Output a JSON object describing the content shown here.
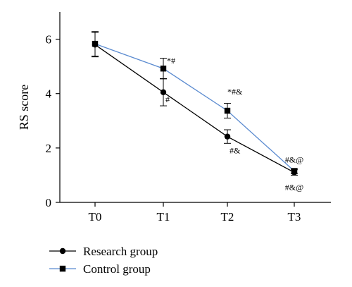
{
  "chart_data": {
    "type": "line",
    "title": "",
    "xlabel": "",
    "ylabel": "RS score",
    "categories": [
      "T0",
      "T1",
      "T2",
      "T3"
    ],
    "ylim": [
      0,
      7
    ],
    "yticks": [
      0,
      2,
      4,
      6
    ],
    "grid": false,
    "legend_position": "bottom-left",
    "series": [
      {
        "name": "Research group",
        "color": "#000000",
        "marker": "circle",
        "values": [
          5.8,
          4.05,
          2.42,
          1.1
        ],
        "errors": [
          0.45,
          0.5,
          0.25,
          0.1
        ],
        "annotations": [
          "",
          "#",
          "#&",
          "#&@"
        ]
      },
      {
        "name": "Control group",
        "color": "#5b8bd0",
        "marker": "square",
        "values": [
          5.83,
          4.92,
          3.37,
          1.15
        ],
        "errors": [
          0.45,
          0.38,
          0.27,
          0.1
        ],
        "annotations": [
          "",
          "*#",
          "*#&",
          "#&@"
        ]
      }
    ]
  }
}
